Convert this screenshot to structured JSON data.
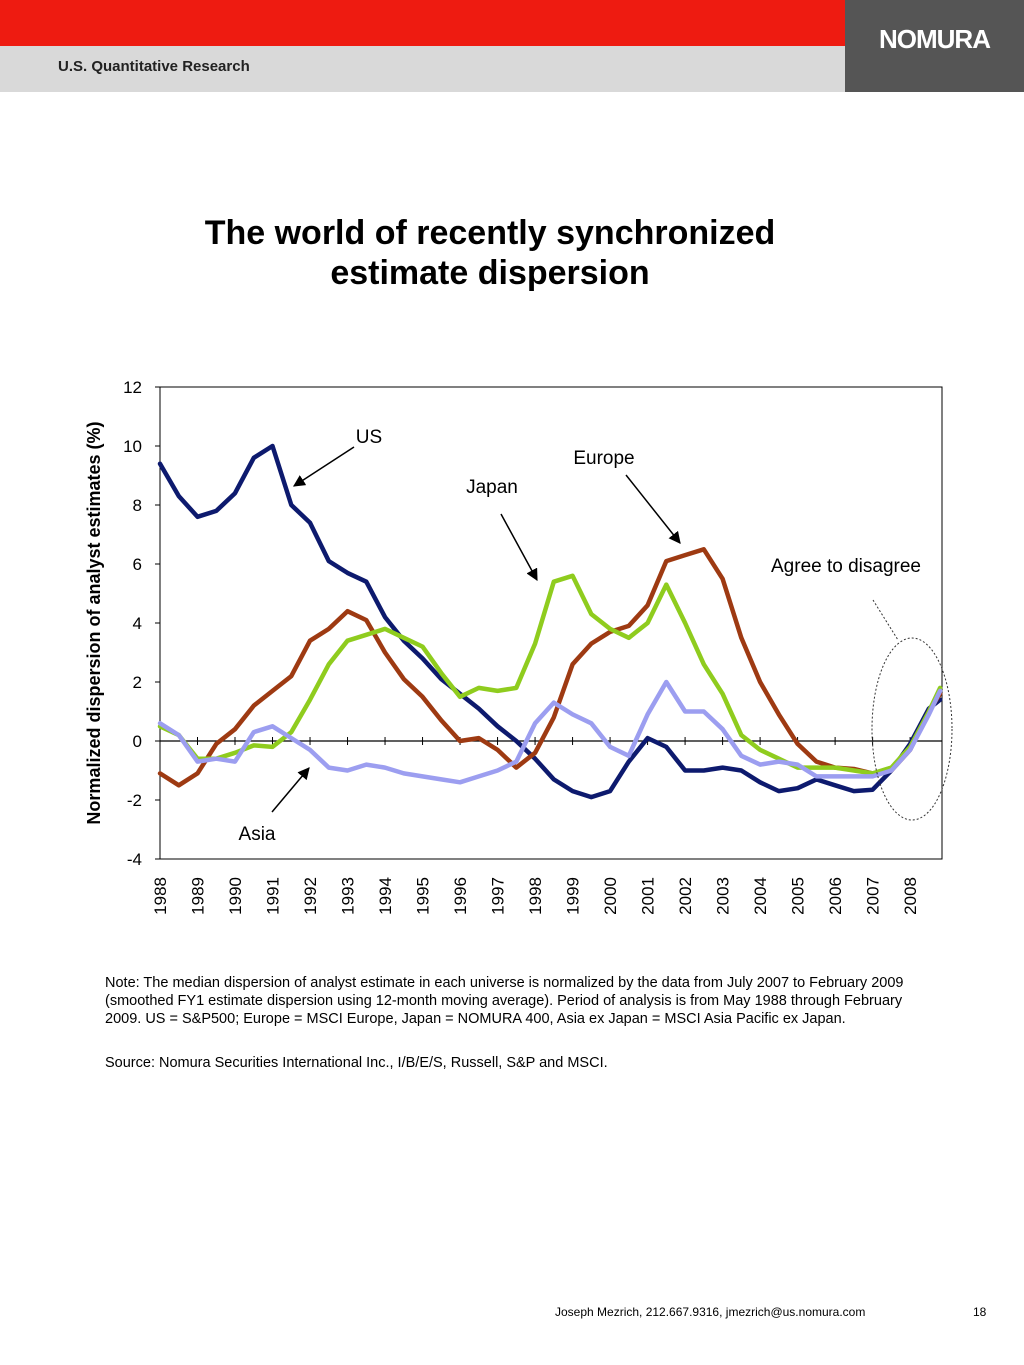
{
  "header": {
    "section": "U.S. Quantitative Research",
    "logo": "NOMURA"
  },
  "chart_data": {
    "type": "line",
    "title": "The world of recently synchronized estimate dispersion",
    "y_label": "Normalized dispersion of analyst estimates (%)",
    "x": [
      1988,
      1988.5,
      1989,
      1989.5,
      1990,
      1990.5,
      1991,
      1991.5,
      1992,
      1992.5,
      1993,
      1993.5,
      1994,
      1994.5,
      1995,
      1995.5,
      1996,
      1996.5,
      1997,
      1997.5,
      1998,
      1998.5,
      1999,
      1999.5,
      2000,
      2000.5,
      2001,
      2001.5,
      2002,
      2002.5,
      2003,
      2003.5,
      2004,
      2004.5,
      2005,
      2005.5,
      2006,
      2006.5,
      2007,
      2007.5,
      2008,
      2008.5,
      2008.8
    ],
    "xlim": [
      1988,
      2008.85
    ],
    "xticks": [
      1988,
      1989,
      1990,
      1991,
      1992,
      1993,
      1994,
      1995,
      1996,
      1997,
      1998,
      1999,
      2000,
      2001,
      2002,
      2003,
      2004,
      2005,
      2006,
      2007,
      2008
    ],
    "ylim": [
      -4,
      12
    ],
    "yticks": [
      -4,
      -2,
      0,
      2,
      4,
      6,
      8,
      10,
      12
    ],
    "grid": false,
    "series": [
      {
        "name": "US",
        "color": "#0d1a6e",
        "values": [
          9.4,
          8.3,
          7.6,
          7.8,
          8.4,
          9.6,
          10.0,
          8.0,
          7.4,
          6.1,
          5.7,
          5.4,
          4.2,
          3.4,
          2.8,
          2.1,
          1.6,
          1.1,
          0.5,
          0.0,
          -0.6,
          -1.3,
          -1.7,
          -1.9,
          -1.7,
          -0.7,
          0.1,
          -0.2,
          -1.0,
          -1.0,
          -0.9,
          -1.0,
          -1.4,
          -1.7,
          -1.6,
          -1.3,
          -1.5,
          -1.7,
          -1.65,
          -1.0,
          -0.1,
          1.1,
          1.4
        ]
      },
      {
        "name": "Europe",
        "color": "#9e3a12",
        "values": [
          -1.1,
          -1.5,
          -1.1,
          -0.1,
          0.4,
          1.2,
          1.7,
          2.2,
          3.4,
          3.8,
          4.4,
          4.1,
          3.0,
          2.1,
          1.5,
          0.7,
          0.0,
          0.1,
          -0.3,
          -0.9,
          -0.4,
          0.8,
          2.6,
          3.3,
          3.7,
          3.9,
          4.6,
          6.1,
          6.3,
          6.5,
          5.5,
          3.5,
          2.0,
          0.9,
          -0.1,
          -0.7,
          -0.9,
          -0.95,
          -1.1,
          -1.0,
          -0.3,
          1.0,
          1.6
        ]
      },
      {
        "name": "Japan",
        "color": "#8fcc1e",
        "values": [
          0.5,
          0.2,
          -0.6,
          -0.6,
          -0.4,
          -0.15,
          -0.2,
          0.3,
          1.4,
          2.6,
          3.4,
          3.6,
          3.8,
          3.5,
          3.2,
          2.3,
          1.5,
          1.8,
          1.7,
          1.8,
          3.3,
          5.4,
          5.6,
          4.3,
          3.8,
          3.5,
          4.0,
          5.3,
          4.0,
          2.6,
          1.6,
          0.2,
          -0.3,
          -0.6,
          -0.9,
          -0.9,
          -0.9,
          -1.0,
          -1.1,
          -0.9,
          -0.2,
          1.0,
          1.8
        ]
      },
      {
        "name": "Asia",
        "color": "#9c9ef0",
        "values": [
          0.6,
          0.2,
          -0.7,
          -0.6,
          -0.7,
          0.3,
          0.5,
          0.1,
          -0.3,
          -0.9,
          -1.0,
          -0.8,
          -0.9,
          -1.1,
          -1.2,
          -1.3,
          -1.4,
          -1.2,
          -1.0,
          -0.7,
          0.6,
          1.3,
          0.9,
          0.6,
          -0.2,
          -0.5,
          0.9,
          2.0,
          1.0,
          1.0,
          0.4,
          -0.5,
          -0.8,
          -0.7,
          -0.8,
          -1.2,
          -1.2,
          -1.2,
          -1.2,
          -1.0,
          -0.3,
          0.9,
          1.7
        ]
      }
    ],
    "annotations": [
      "US",
      "Europe",
      "Japan",
      "Agree to disagree",
      "Asia"
    ]
  },
  "note": "Note: The median dispersion of analyst estimate in each universe is normalized by the data from July 2007 to February 2009 (smoothed FY1 estimate dispersion using 12-month moving average). Period of analysis is from May 1988 through February 2009. US = S&P500; Europe = MSCI Europe, Japan = NOMURA 400, Asia ex Japan = MSCI Asia Pacific ex Japan.",
  "source": "Source: Nomura Securities International Inc., I/B/E/S, Russell, S&P and MSCI.",
  "footer": {
    "contact": "Joseph Mezrich, 212.667.9316, jmezrich@us.nomura.com",
    "page": "18"
  }
}
